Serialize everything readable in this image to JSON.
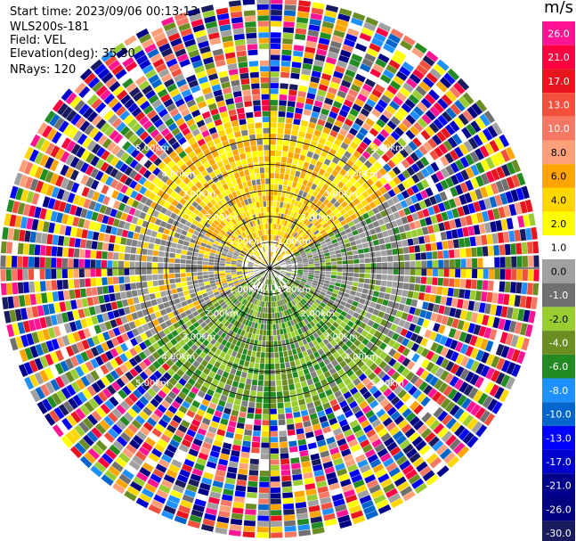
{
  "header": {
    "start_time": "Start time: 2023/09/06 00:13:13",
    "device": "WLS200s-181",
    "field": "Field: VEL",
    "elevation": "Elevation(deg): 35.30",
    "nrays": "NRays: 120"
  },
  "chart_data": {
    "type": "heatmap",
    "projection": "polar-ppi",
    "unit": "m/s",
    "n_rays": 120,
    "range_km": [
      0,
      5.0
    ],
    "range_rings_km": [
      1.0,
      2.0,
      3.0,
      4.0,
      5.0
    ],
    "ring_labels": [
      "1.00km",
      "2.00km",
      "3.00km",
      "4.00km",
      "5.00km"
    ],
    "spokes": 12,
    "colorbar": {
      "ticks": [
        "26.0",
        "21.0",
        "17.0",
        "13.0",
        "10.0",
        "8.0",
        "6.0",
        "4.0",
        "2.0",
        "1.0",
        "0.0",
        "-1.0",
        "-2.0",
        "-4.0",
        "-6.0",
        "-8.0",
        "-10.0",
        "-13.0",
        "-17.0",
        "-21.0",
        "-26.0",
        "-30.0"
      ],
      "colors": [
        "#ff1493",
        "#ff0040",
        "#e8141e",
        "#f0503c",
        "#f57864",
        "#ffa07a",
        "#ffa500",
        "#ffd700",
        "#ffff00",
        "#ffffff",
        "#a0a0a0",
        "#707070",
        "#9acd32",
        "#6b8e23",
        "#228b22",
        "#1e90ff",
        "#0066cc",
        "#0000ff",
        "#0000cd",
        "#00008b",
        "#000080",
        "#1a1a5e"
      ]
    },
    "regions": [
      {
        "name": "near-field-north",
        "range_km": [
          0,
          2.5
        ],
        "colors": [
          "#ffff00",
          "#ffd700",
          "#ffa500"
        ]
      },
      {
        "name": "near-field-south",
        "range_km": [
          0,
          2.5
        ],
        "colors": [
          "#9acd32",
          "#6b8e23",
          "#228b22"
        ]
      },
      {
        "name": "near-field-west-east",
        "range_km": [
          0,
          2.5
        ],
        "colors": [
          "#808080",
          "#a0a0a0"
        ]
      },
      {
        "name": "far-field-noise",
        "range_km": [
          2.5,
          5.0
        ],
        "colors": "all"
      }
    ]
  }
}
